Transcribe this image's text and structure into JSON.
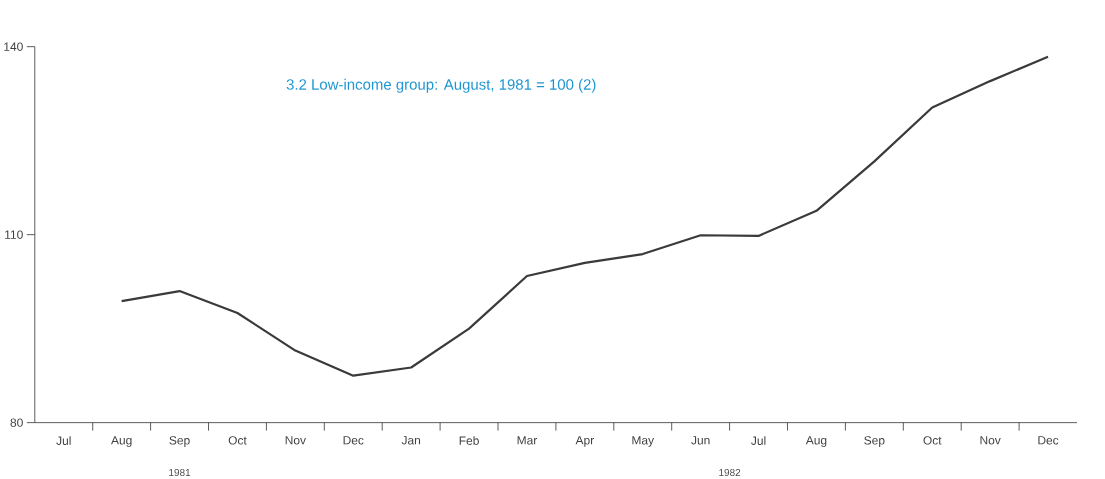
{
  "chart_data": {
    "type": "line",
    "title": "3.2    Low-income group: August, 1981 = 100 (2)",
    "categories": [
      "Jul",
      "Aug",
      "Sep",
      "Oct",
      "Nov",
      "Dec",
      "Jan",
      "Feb",
      "Mar",
      "Apr",
      "May",
      "Jun",
      "Jul",
      "Aug",
      "Sep",
      "Oct",
      "Nov",
      "Dec"
    ],
    "series": [
      {
        "color": "#3a3a3a",
        "values": [
          null,
          99.4,
          101.0,
          97.5,
          91.5,
          87.5,
          88.8,
          95.0,
          103.4,
          105.5,
          106.9,
          109.9,
          109.8,
          113.8,
          121.7,
          130.3,
          134.5,
          138.4
        ]
      }
    ],
    "ylim": [
      80,
      140
    ],
    "yticks": [
      80,
      110,
      140
    ],
    "annotations": [
      "1981",
      "1982"
    ],
    "marker": "none",
    "line_style": "solid",
    "grid": false
  }
}
